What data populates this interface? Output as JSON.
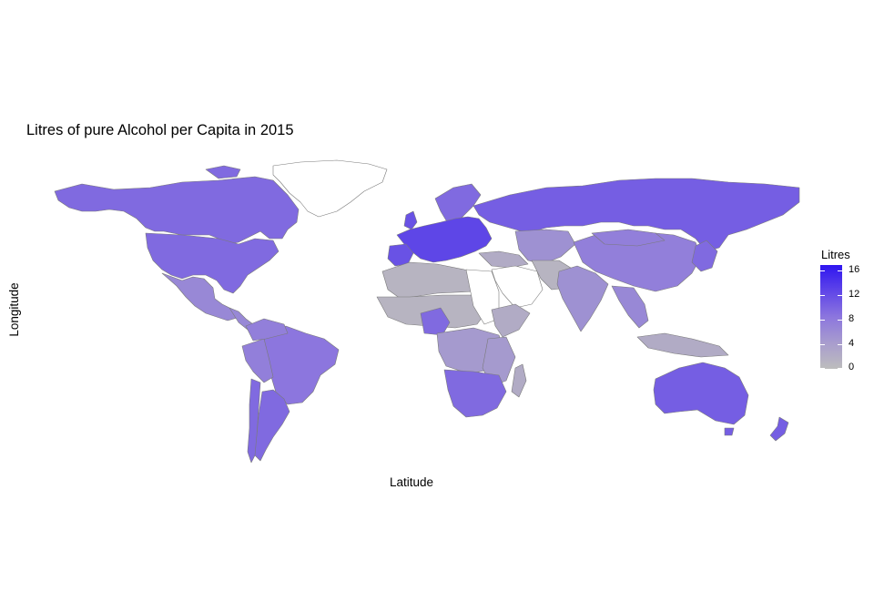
{
  "chart": {
    "title": "Litres of pure Alcohol per Capita in 2015",
    "xlabel": "Latitude",
    "ylabel": "Longitude"
  },
  "chart_data": {
    "type": "choropleth",
    "title": "Litres of pure Alcohol per Capita in 2015",
    "xlabel": "Latitude",
    "ylabel": "Longitude",
    "legend": {
      "title": "Litres",
      "ticks": [
        "16",
        "12",
        "8",
        "4",
        "0"
      ],
      "range": [
        0,
        16
      ],
      "low_color": "#bdbdbd",
      "high_color": "#2f16f0",
      "placement": "right"
    },
    "no_data_color": "#ffffff",
    "border_color": "#7a7a7a",
    "regions": [
      {
        "name": "Canada",
        "value": 9
      },
      {
        "name": "United States",
        "value": 9
      },
      {
        "name": "Mexico",
        "value": 6
      },
      {
        "name": "Greenland",
        "value": null
      },
      {
        "name": "Brazil",
        "value": 8
      },
      {
        "name": "Argentina",
        "value": 9
      },
      {
        "name": "Chile",
        "value": 9
      },
      {
        "name": "Russia",
        "value": 10
      },
      {
        "name": "Europe",
        "value": 12
      },
      {
        "name": "China",
        "value": 7
      },
      {
        "name": "India",
        "value": 5
      },
      {
        "name": "Australia",
        "value": 10
      },
      {
        "name": "Southern Africa",
        "value": 9
      },
      {
        "name": "North Africa",
        "value": 1
      },
      {
        "name": "Middle East",
        "value": null
      }
    ]
  }
}
